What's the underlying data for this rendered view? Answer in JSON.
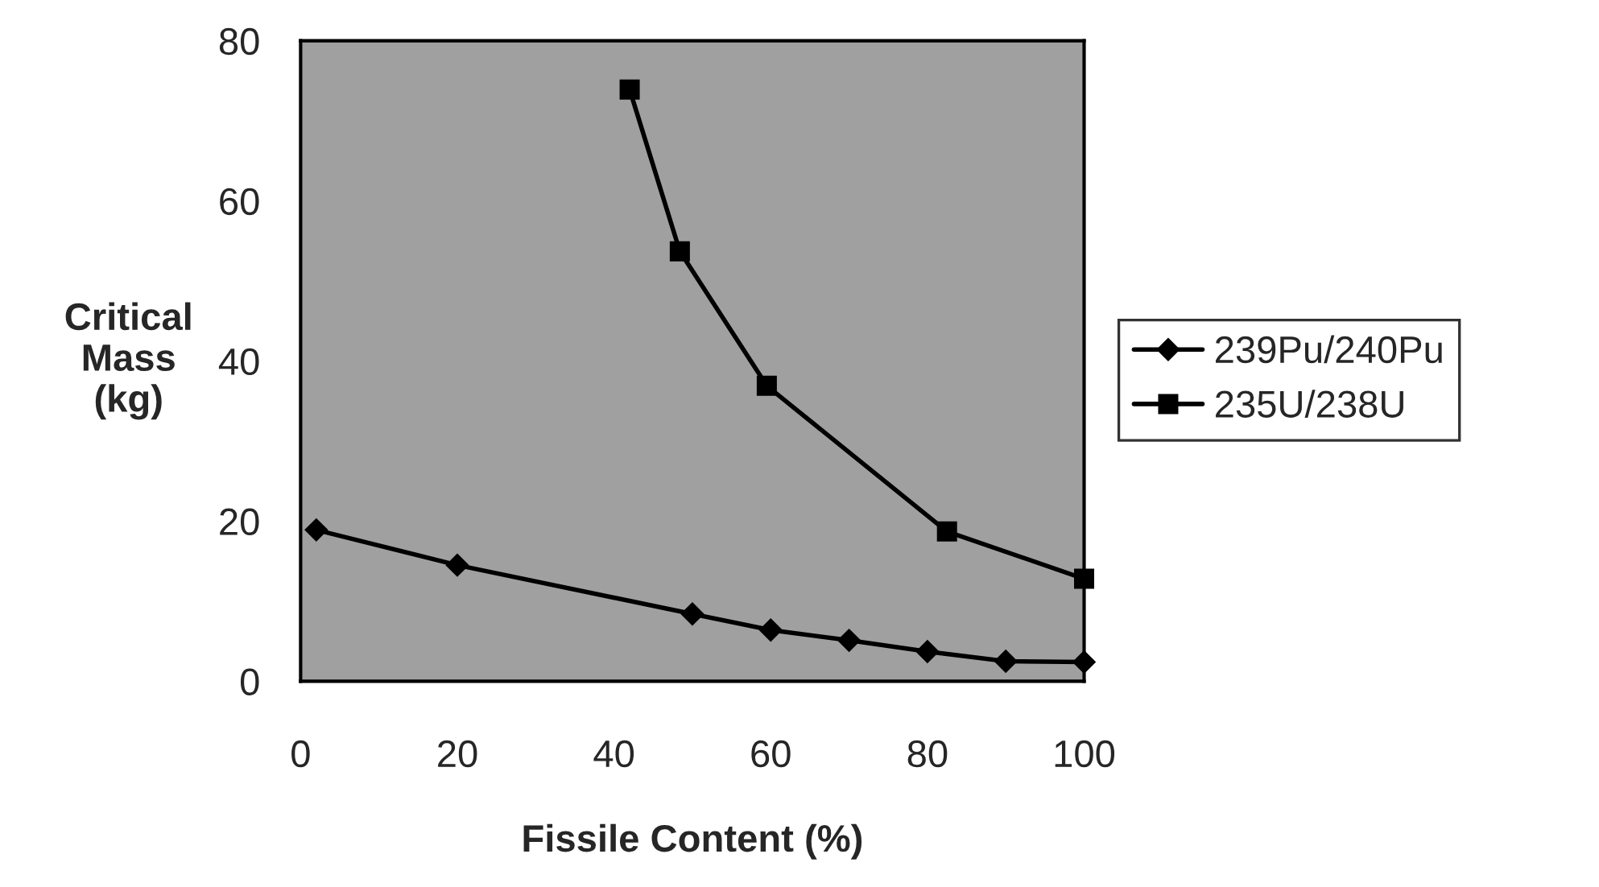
{
  "chart_data": {
    "type": "line",
    "xlabel": "Fissile Content (%)",
    "ylabel": "Critical\nMass\n(kg)",
    "xlim": [
      0,
      100
    ],
    "xticks": [
      0,
      20,
      40,
      60,
      80,
      100
    ],
    "ylim": [
      0,
      80
    ],
    "yticks": [
      0,
      20,
      40,
      60,
      80
    ],
    "grid": false,
    "legend": "right",
    "series": [
      {
        "name": "239Pu/240Pu",
        "color": "#000000",
        "marker": "diamond",
        "x": [
          2,
          20,
          50,
          60,
          70,
          80,
          90,
          100
        ],
        "values": [
          18.9,
          14.5,
          8.4,
          6.4,
          5.1,
          3.7,
          2.5,
          2.4
        ]
      },
      {
        "name": "235U/238U",
        "color": "#000000",
        "marker": "square",
        "x": [
          42,
          48.4,
          59.5,
          82.5,
          100
        ],
        "values": [
          73.9,
          53.7,
          36.9,
          18.7,
          12.8
        ]
      }
    ]
  }
}
